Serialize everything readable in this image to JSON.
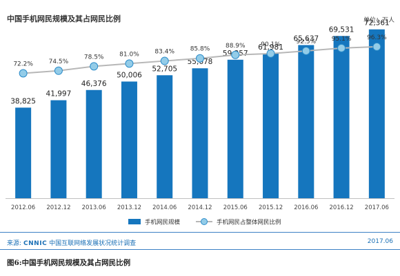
{
  "chart_data": {
    "type": "bar",
    "title": "中国手机网民规模及其占网民比例",
    "unit_label": "单位：万人",
    "categories": [
      "2012.06",
      "2012.12",
      "2013.06",
      "2013.12",
      "2014.06",
      "2014.12",
      "2015.06",
      "2015.12",
      "2016.06",
      "2016.12",
      "2017.06"
    ],
    "series": [
      {
        "name": "手机网民规模",
        "values": [
          38825,
          41997,
          46376,
          50006,
          52705,
          55678,
          59357,
          61981,
          65637,
          69531,
          72361
        ],
        "labels": [
          "38,825",
          "41,997",
          "46,376",
          "50,006",
          "52,705",
          "55,678",
          "59,357",
          "61,981",
          "65,637",
          "69,531",
          "72,361"
        ]
      },
      {
        "name": "手机网民占整体网民比例",
        "values": [
          72.2,
          74.5,
          78.5,
          81.0,
          83.4,
          85.8,
          88.9,
          90.1,
          92.5,
          95.1,
          96.3
        ],
        "labels": [
          "72.2%",
          "74.5%",
          "78.5%",
          "81.0%",
          "83.4%",
          "85.8%",
          "88.9%",
          "90.1%",
          "92.5%",
          "95.1%",
          "96.3%"
        ]
      }
    ],
    "ylim_bar": [
      0,
      82000
    ],
    "ylim_pct": [
      65,
      100
    ],
    "grid": false,
    "legend_position": "bottom",
    "colors": {
      "bar": "#1576be",
      "line": "#b7b7b7",
      "marker_fill": "#93cce8",
      "marker_stroke": "#2a8bc9"
    }
  },
  "footer": {
    "source_lead": "来源:",
    "source_org": "CNNIC",
    "source_text": "中国互联网络发展状况统计调查",
    "date": "2017.06"
  },
  "caption": "图6:中国手机网民规模及其占网民比例"
}
